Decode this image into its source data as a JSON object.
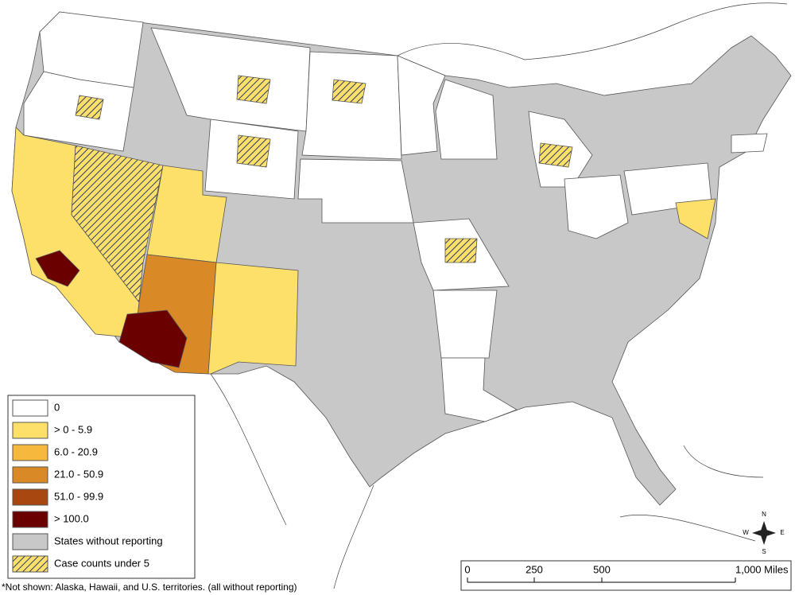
{
  "legend": {
    "items": [
      {
        "label": "0",
        "fill": "#ffffff"
      },
      {
        "label": "> 0 - 5.9",
        "fill": "#fde06a"
      },
      {
        "label": "6.0 - 20.9",
        "fill": "#f7b93d"
      },
      {
        "label": "21.0 - 50.9",
        "fill": "#d98a26"
      },
      {
        "label": "51.0 - 99.9",
        "fill": "#a8470f"
      },
      {
        "label": "> 100.0",
        "fill": "#6b0000"
      },
      {
        "label": "States without reporting",
        "fill": "#c8c8c8"
      },
      {
        "label": "Case counts under 5",
        "fill": "hatch"
      }
    ]
  },
  "scale_bar": {
    "labels": [
      "0",
      "250",
      "500",
      "1,000 Miles"
    ]
  },
  "compass": {
    "north": "N",
    "south": "S",
    "east": "E",
    "west": "W"
  },
  "footnote": "*Not shown: Alaska, Hawaii, and U.S. territories. (all without reporting)"
}
